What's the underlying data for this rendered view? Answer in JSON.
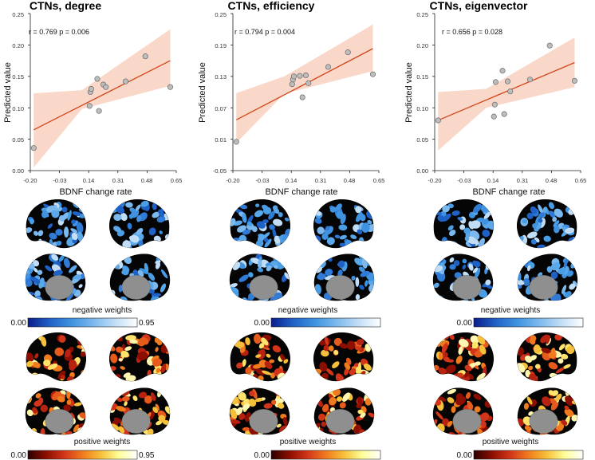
{
  "chart_data": [
    {
      "type": "scatter",
      "title": "CTNs, degree",
      "xlabel": "BDNF change rate",
      "ylabel": "Predicted value",
      "stat_text": "r = 0.769   p = 0.006",
      "xlim": [
        -0.2,
        0.65
      ],
      "ylim": [
        0.0,
        0.25
      ],
      "xticks": [
        "-0.20",
        "-0.03",
        "0.14",
        "0.31",
        "0.48",
        "0.65"
      ],
      "yticks": [
        "0.00",
        "0.05",
        "0.10",
        "0.15",
        "0.20",
        "0.25"
      ],
      "x": [
        -0.18,
        0.145,
        0.15,
        0.155,
        0.19,
        0.2,
        0.225,
        0.24,
        0.355,
        0.47,
        0.615
      ],
      "y": [
        0.036,
        0.103,
        0.125,
        0.13,
        0.146,
        0.095,
        0.137,
        0.133,
        0.142,
        0.182,
        0.133
      ],
      "fit": {
        "x0": -0.18,
        "y0": 0.065,
        "x1": 0.615,
        "y1": 0.175
      },
      "ci": {
        "x": [
          -0.18,
          0.1,
          0.615
        ],
        "lower": [
          0.005,
          0.098,
          0.135
        ],
        "upper": [
          0.123,
          0.128,
          0.225
        ]
      }
    },
    {
      "type": "scatter",
      "title": "CTNs, efficiency",
      "xlabel": "BDNF change rate",
      "ylabel": "Predicted value",
      "stat_text": "r = 0.794   p = 0.004",
      "xlim": [
        -0.2,
        0.65
      ],
      "ylim": [
        -0.05,
        0.25
      ],
      "xticks": [
        "-0.20",
        "-0.03",
        "0.14",
        "0.31",
        "0.48",
        "0.65"
      ],
      "yticks": [
        "-0.05",
        "0.01",
        "0.07",
        "0.13",
        "0.19",
        "0.25"
      ],
      "x": [
        -0.18,
        0.145,
        0.15,
        0.155,
        0.19,
        0.205,
        0.225,
        0.24,
        0.355,
        0.47,
        0.615
      ],
      "y": [
        0.005,
        0.115,
        0.124,
        0.13,
        0.131,
        0.09,
        0.132,
        0.117,
        0.148,
        0.176,
        0.134
      ],
      "fit": {
        "x0": -0.18,
        "y0": 0.047,
        "x1": 0.615,
        "y1": 0.183
      },
      "ci": {
        "x": [
          -0.18,
          0.1,
          0.615
        ],
        "lower": [
          0.003,
          0.097,
          0.14
        ],
        "upper": [
          0.098,
          0.13,
          0.229
        ]
      }
    },
    {
      "type": "scatter",
      "title": "CTNs, eigenvector",
      "xlabel": "BDNF change rate",
      "ylabel": "Predicted value",
      "stat_text": "r = 0.656   p = 0.028",
      "xlim": [
        -0.2,
        0.65
      ],
      "ylim": [
        0.0,
        0.25
      ],
      "xticks": [
        "-0.20",
        "-0.03",
        "0.14",
        "0.31",
        "0.48",
        "0.65"
      ],
      "yticks": [
        "0.00",
        "0.05",
        "0.10",
        "0.15",
        "0.20",
        "0.25"
      ],
      "x": [
        -0.18,
        0.145,
        0.15,
        0.155,
        0.195,
        0.205,
        0.225,
        0.24,
        0.355,
        0.47,
        0.615
      ],
      "y": [
        0.08,
        0.086,
        0.105,
        0.141,
        0.159,
        0.09,
        0.142,
        0.126,
        0.145,
        0.199,
        0.143
      ],
      "fit": {
        "x0": -0.18,
        "y0": 0.08,
        "x1": 0.615,
        "y1": 0.172
      },
      "ci": {
        "x": [
          -0.18,
          0.1,
          0.615
        ],
        "lower": [
          0.032,
          0.1,
          0.133
        ],
        "upper": [
          0.125,
          0.13,
          0.212
        ]
      }
    }
  ],
  "brain_panels": {
    "negative_label": "negative weights",
    "positive_label": "positive weights",
    "cb_min": "0.00",
    "cb_max": "0.95",
    "negative_colors": [
      "#0a1c8a",
      "#1f62c7",
      "#3f93e0",
      "#7cb9ee",
      "#c2def6",
      "#ffffff"
    ],
    "positive_colors": [
      "#2a0000",
      "#8c0e00",
      "#d2351a",
      "#f07b1e",
      "#f6c03a",
      "#ffff9a",
      "#ffffff"
    ]
  }
}
